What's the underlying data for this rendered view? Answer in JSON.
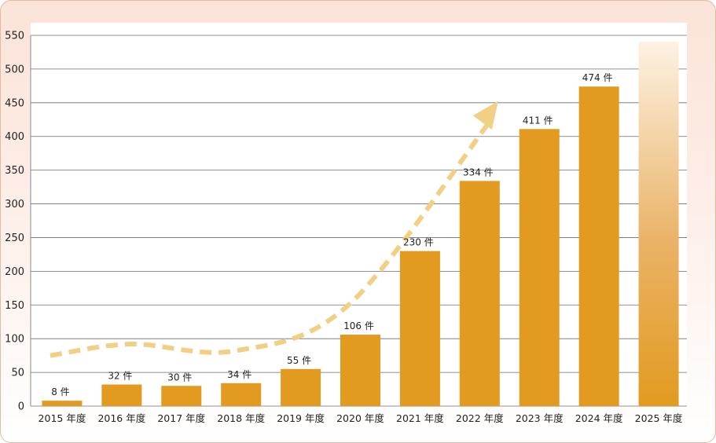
{
  "chart_data": {
    "type": "bar",
    "categories": [
      "2015 年度",
      "2016 年度",
      "2017 年度",
      "2018 年度",
      "2019 年度",
      "2020 年度",
      "2021 年度",
      "2022 年度",
      "2023 年度",
      "2024 年度",
      "2025 年度"
    ],
    "values": [
      8,
      32,
      30,
      34,
      55,
      106,
      230,
      334,
      411,
      474,
      555
    ],
    "data_labels": [
      "8 件",
      "32 件",
      "30 件",
      "34 件",
      "55 件",
      "106 件",
      "230 件",
      "334 件",
      "411 件",
      "474 件",
      ""
    ],
    "ylim": [
      0,
      550
    ],
    "yticks": [
      0,
      50,
      100,
      150,
      200,
      250,
      300,
      350,
      400,
      450,
      500,
      550
    ],
    "grid": true,
    "legend": "none",
    "trend_arrow": {
      "style": "dashed",
      "points": [
        [
          0,
          75
        ],
        [
          1.35,
          92
        ],
        [
          3.1,
          82
        ],
        [
          5.0,
          150
        ],
        [
          7.35,
          420
        ]
      ]
    },
    "colors": {
      "bar": "#e29b20",
      "projection_bar": "#f3d4a8",
      "trend_arrow": "#f1cf85",
      "grid": "#6e6e6e",
      "frame_top": "#fbe3d8"
    }
  }
}
